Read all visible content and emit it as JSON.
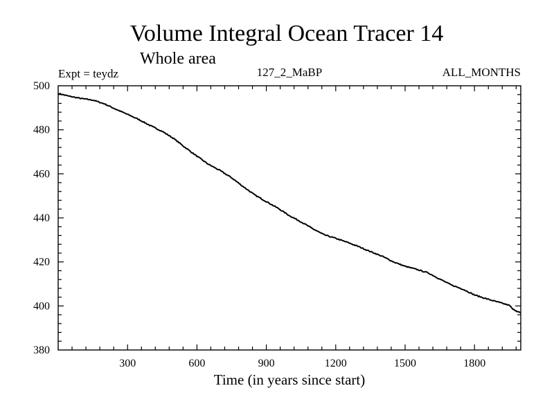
{
  "chart_data": {
    "type": "line",
    "title": "Volume Integral Ocean Tracer 14",
    "subtitle": "Whole area",
    "left_header": "Expt = teydz",
    "center_header": "127_2_MaBP",
    "right_header": "ALL_MONTHS",
    "xlabel": "Time (in years since start)",
    "ylabel": "",
    "xlim": [
      0,
      2000
    ],
    "ylim": [
      380,
      500
    ],
    "xticks": [
      300,
      600,
      900,
      1200,
      1500,
      1800
    ],
    "yticks": [
      380,
      400,
      420,
      440,
      460,
      480,
      500
    ],
    "grid": false,
    "series": [
      {
        "name": "Volume Integral Ocean Tracer 14",
        "color": "#000000",
        "x": [
          0,
          50,
          100,
          150,
          200,
          250,
          300,
          350,
          400,
          450,
          500,
          550,
          600,
          650,
          700,
          750,
          800,
          850,
          900,
          950,
          1000,
          1050,
          1100,
          1150,
          1200,
          1250,
          1300,
          1350,
          1400,
          1450,
          1500,
          1550,
          1600,
          1650,
          1700,
          1750,
          1800,
          1850,
          1900,
          1950,
          1975,
          2000
        ],
        "y": [
          496.5,
          495.2,
          494.2,
          493.5,
          491.8,
          489.3,
          487.0,
          484.6,
          481.8,
          479.3,
          476.0,
          471.9,
          468.0,
          464.3,
          461.5,
          458.2,
          454.2,
          450.4,
          447.4,
          444.4,
          441.0,
          438.2,
          435.1,
          432.3,
          430.7,
          428.9,
          426.9,
          424.7,
          422.6,
          420.0,
          418.0,
          416.6,
          415.0,
          412.2,
          409.5,
          407.6,
          405.0,
          403.3,
          401.8,
          400.3,
          397.8,
          397.0
        ]
      }
    ]
  }
}
